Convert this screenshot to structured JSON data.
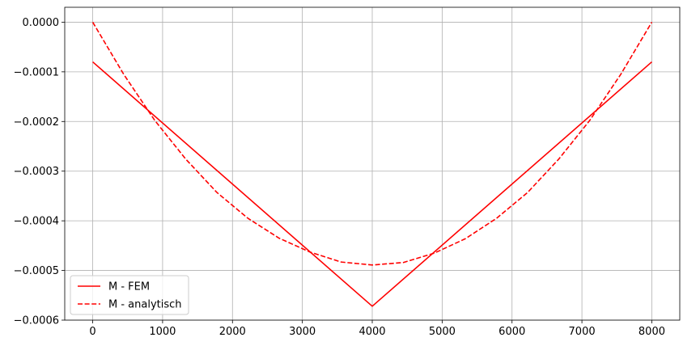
{
  "chart_data": {
    "type": "line",
    "title": "",
    "xlabel": "",
    "ylabel": "",
    "xlim": [
      -400,
      8400
    ],
    "ylim": [
      -0.0006,
      3e-05
    ],
    "x_ticks": [
      0,
      1000,
      2000,
      3000,
      4000,
      5000,
      6000,
      7000,
      8000
    ],
    "x_tick_labels": [
      "0",
      "1000",
      "2000",
      "3000",
      "4000",
      "5000",
      "6000",
      "7000",
      "8000"
    ],
    "y_ticks": [
      0.0,
      -0.0001,
      -0.0002,
      -0.0003,
      -0.0004,
      -0.0005,
      -0.0006
    ],
    "y_tick_labels": [
      "0.0000",
      "−0.0001",
      "−0.0002",
      "−0.0003",
      "−0.0004",
      "−0.0005",
      "−0.0006"
    ],
    "grid": true,
    "legend_position": "lower-left",
    "series": [
      {
        "name": "M - FEM",
        "color": "#ff0000",
        "style": "solid",
        "x": [
          0,
          4000,
          8000
        ],
        "y": [
          -8e-05,
          -0.000572,
          -8e-05
        ]
      },
      {
        "name": "M - analytisch",
        "color": "#ff0000",
        "style": "dashed",
        "x": [
          0,
          444,
          889,
          1333,
          1778,
          2222,
          2667,
          3111,
          3556,
          4000,
          4444,
          4889,
          5333,
          5778,
          6222,
          6667,
          7111,
          7556,
          8000
        ],
        "y": [
          0.0,
          -0.000105,
          -0.000198,
          -0.000276,
          -0.000343,
          -0.000395,
          -0.000435,
          -0.000463,
          -0.000483,
          -0.000489,
          -0.000484,
          -0.000465,
          -0.000436,
          -0.000395,
          -0.000343,
          -0.000276,
          -0.000198,
          -0.000105,
          0.0
        ]
      }
    ]
  }
}
